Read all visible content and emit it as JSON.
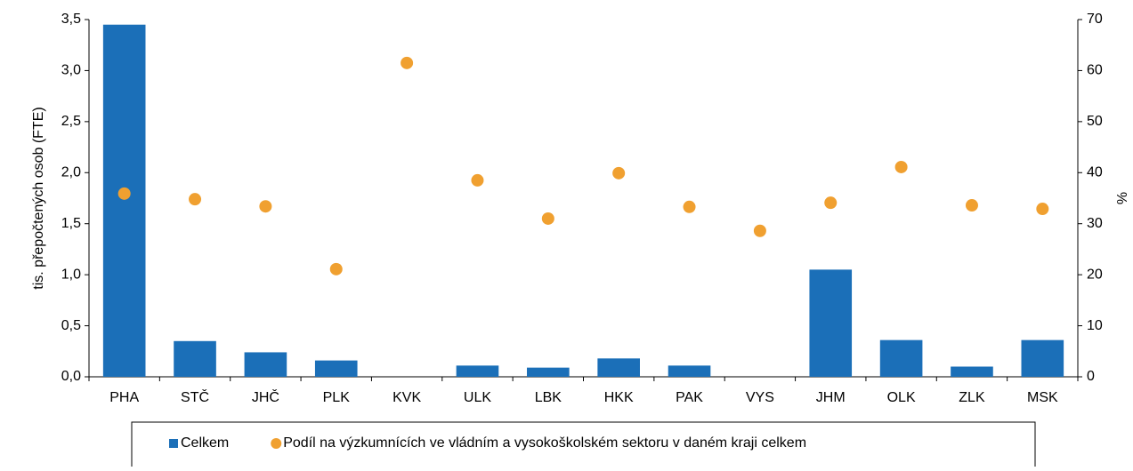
{
  "chart_data": {
    "type": "bar_scatter",
    "categories": [
      "PHA",
      "STČ",
      "JHČ",
      "PLK",
      "KVK",
      "ULK",
      "LBK",
      "HKK",
      "PAK",
      "VYS",
      "JHM",
      "OLK",
      "ZLK",
      "MSK"
    ],
    "series": [
      {
        "name": "Celkem",
        "type": "bar",
        "color": "#1b6fb8",
        "axis": "y",
        "values": [
          3.45,
          0.35,
          0.24,
          0.16,
          0,
          0.11,
          0.09,
          0.18,
          0.11,
          0,
          1.05,
          0.36,
          0.1,
          0.36
        ]
      },
      {
        "name": "Podíl na výzkumnících ve vládním a vysokoškolském sektoru v daném kraji celkem",
        "type": "scatter",
        "color": "#f0a030",
        "axis": "y2",
        "values": [
          35.9,
          34.8,
          33.4,
          21.1,
          61.5,
          38.5,
          31.0,
          39.9,
          33.3,
          28.6,
          34.1,
          41.1,
          33.6,
          32.9
        ]
      }
    ],
    "ylabel": "tis. přepočtených osob (FTE)",
    "y2label": "%",
    "ylim": [
      0,
      3.5
    ],
    "yticks": [
      {
        "value": 0,
        "label": "0,0"
      },
      {
        "value": 0.5,
        "label": "0,5"
      },
      {
        "value": 1,
        "label": "1,0"
      },
      {
        "value": 1.5,
        "label": "1,5"
      },
      {
        "value": 2,
        "label": "2,0"
      },
      {
        "value": 2.5,
        "label": "2,5"
      },
      {
        "value": 3,
        "label": "3,0"
      },
      {
        "value": 3.5,
        "label": "3,5"
      }
    ],
    "y2lim": [
      0,
      70
    ],
    "y2ticks": [
      0,
      10,
      20,
      30,
      40,
      50,
      60,
      70
    ],
    "legend": "bottom"
  }
}
